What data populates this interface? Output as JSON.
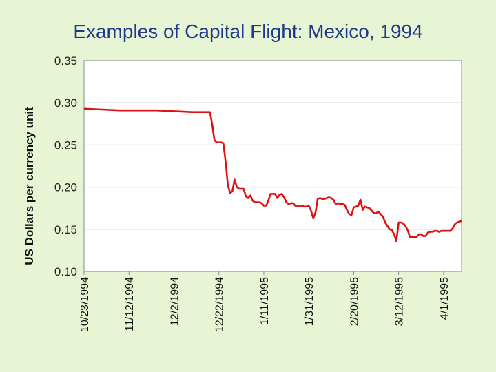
{
  "chart_data": {
    "type": "line",
    "title": "Examples of Capital Flight:  Mexico, 1994",
    "ylabel": "US Dollars per currency unit",
    "xlabel": "",
    "ylim": [
      0.1,
      0.35
    ],
    "y_ticks": [
      "0.10",
      "0.15",
      "0.20",
      "0.25",
      "0.30",
      "0.35"
    ],
    "x_tick_labels": [
      "10/23/1994",
      "11/12/1994",
      "12/2/1994",
      "12/22/1994",
      "1/11/1995",
      "1/31/1995",
      "2/20/1995",
      "3/12/1995",
      "4/1/1995"
    ],
    "x_tick_days": [
      0,
      20,
      40,
      60,
      80,
      100,
      120,
      140,
      160
    ],
    "x_range_days": [
      0,
      168
    ],
    "grid": "horizontal",
    "series_color": "#e01010",
    "series": [
      {
        "x_days": [
          0,
          8,
          16,
          24,
          32,
          40,
          48,
          56,
          57,
          58,
          59,
          60,
          61,
          62,
          63,
          64,
          65,
          66,
          67,
          68,
          69,
          70,
          71,
          72,
          73,
          74,
          75,
          76,
          77,
          78,
          79,
          80,
          81,
          82,
          83,
          84,
          85,
          86,
          87,
          88,
          89,
          90,
          91,
          92,
          93,
          94,
          95,
          96,
          97,
          98,
          99,
          100,
          101,
          102,
          103,
          104,
          105,
          106,
          107,
          108,
          109,
          110,
          111,
          112,
          113,
          114,
          115,
          116,
          117,
          118,
          119,
          120,
          121,
          122,
          123,
          124,
          125,
          126,
          127,
          128,
          129,
          130,
          131,
          132,
          133,
          134,
          135,
          136,
          137,
          138,
          139,
          140,
          141,
          142,
          143,
          144,
          145,
          146,
          147,
          148,
          149,
          150,
          151,
          152,
          153,
          154,
          155,
          156,
          157,
          158,
          159,
          160,
          161,
          162,
          163,
          164,
          165,
          166,
          167,
          168
        ],
        "values": [
          0.293,
          0.292,
          0.291,
          0.291,
          0.291,
          0.29,
          0.289,
          0.289,
          0.275,
          0.256,
          0.253,
          0.253,
          0.253,
          0.252,
          0.23,
          0.202,
          0.193,
          0.195,
          0.209,
          0.2,
          0.198,
          0.198,
          0.198,
          0.189,
          0.187,
          0.19,
          0.184,
          0.182,
          0.182,
          0.182,
          0.181,
          0.178,
          0.178,
          0.184,
          0.192,
          0.192,
          0.192,
          0.187,
          0.191,
          0.192,
          0.188,
          0.182,
          0.18,
          0.181,
          0.181,
          0.178,
          0.177,
          0.178,
          0.178,
          0.177,
          0.177,
          0.178,
          0.172,
          0.163,
          0.17,
          0.186,
          0.187,
          0.186,
          0.186,
          0.187,
          0.188,
          0.187,
          0.185,
          0.18,
          0.181,
          0.18,
          0.18,
          0.179,
          0.173,
          0.168,
          0.167,
          0.176,
          0.177,
          0.178,
          0.185,
          0.173,
          0.177,
          0.176,
          0.175,
          0.172,
          0.169,
          0.169,
          0.171,
          0.168,
          0.165,
          0.158,
          0.154,
          0.15,
          0.149,
          0.144,
          0.136,
          0.158,
          0.158,
          0.157,
          0.154,
          0.149,
          0.141,
          0.141,
          0.141,
          0.141,
          0.144,
          0.144,
          0.142,
          0.142,
          0.146,
          0.147,
          0.147,
          0.148,
          0.148,
          0.147,
          0.148,
          0.148,
          0.148,
          0.148,
          0.148,
          0.151,
          0.156,
          0.158,
          0.159,
          0.16
        ]
      }
    ]
  }
}
